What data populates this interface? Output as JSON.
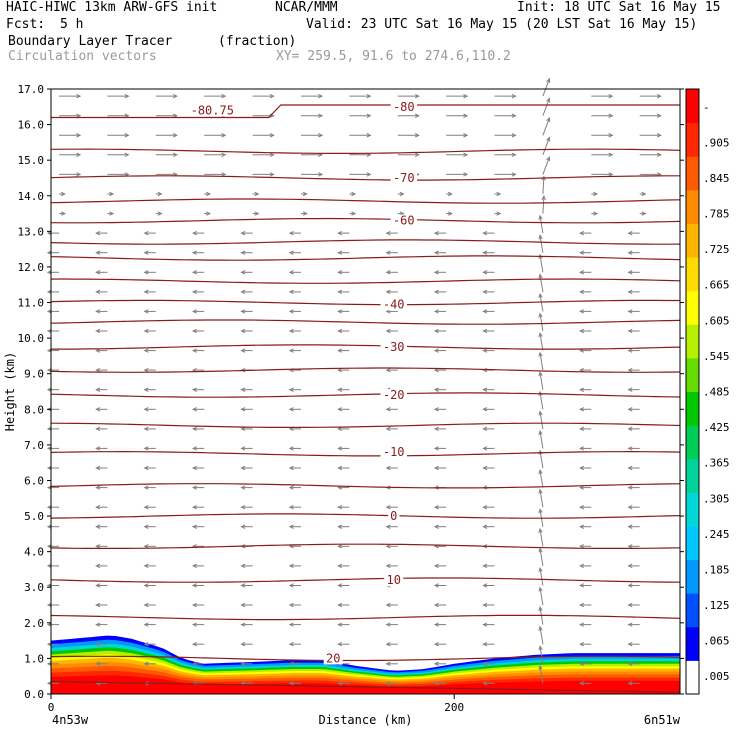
{
  "header": {
    "model": "HAIC-HIWC 13km ARW-GFS init",
    "org": "NCAR/MMM",
    "init": "Init: 18 UTC Sat 16 May 15",
    "fcst_label": "Fcst:",
    "fcst_value": "5 h",
    "valid": "Valid: 23 UTC Sat 16 May 15 (20 LST Sat 16 May 15)",
    "field_name": "Boundary Layer Tracer",
    "field_units": "(fraction)",
    "vector_label": "Circulation vectors",
    "xy_label": "XY= 259.5, 91.6 to 274.6,110.2"
  },
  "colors": {
    "contour": "#8b1a1a",
    "vector": "#7f7f7f",
    "colorbar": [
      "#ffffff",
      "#0000ff",
      "#0050ff",
      "#0099ff",
      "#00c8ff",
      "#00d7d7",
      "#00d29b",
      "#00cd55",
      "#00c800",
      "#64dc00",
      "#b4f000",
      "#ffff00",
      "#ffdc00",
      "#ffb400",
      "#ff8c00",
      "#ff5a00",
      "#ff2800",
      "#ff0000"
    ]
  },
  "chart_data": {
    "type": "heatmap",
    "title": "Boundary Layer Tracer",
    "units": "(fraction)",
    "xlabel": "Distance (km)",
    "ylabel": "Height (km)",
    "xlim": [
      0,
      312
    ],
    "ylim": [
      0,
      17
    ],
    "x_tick_labels": [
      "0",
      "200"
    ],
    "x_end_labels": [
      "4n53w",
      "6n51w"
    ],
    "y_ticks": [
      "0.0",
      "1.0",
      "2.0",
      "3.0",
      "4.0",
      "5.0",
      "6.0",
      "7.0",
      "8.0",
      "9.0",
      "10.0",
      "11.0",
      "12.0",
      "13.0",
      "14.0",
      "15.0",
      "16.0",
      "17.0"
    ],
    "colorbar_labels": [
      ".005",
      ".065",
      ".125",
      ".185",
      ".245",
      ".305",
      ".365",
      ".425",
      ".485",
      ".545",
      ".605",
      ".665",
      ".725",
      ".785",
      ".845",
      ".905",
      "-"
    ],
    "temperature_contours": [
      {
        "label": "-80.75",
        "x": 80,
        "y": 16.4
      },
      {
        "label": "-80",
        "x": 175,
        "y": 16.5
      },
      {
        "label": "-70",
        "x": 175,
        "y": 14.5
      },
      {
        "label": "-60",
        "x": 175,
        "y": 13.3
      },
      {
        "label": "-40",
        "x": 170,
        "y": 10.95
      },
      {
        "label": "-30",
        "x": 170,
        "y": 9.75
      },
      {
        "label": "-20",
        "x": 170,
        "y": 8.4
      },
      {
        "label": "-10",
        "x": 170,
        "y": 6.8
      },
      {
        "label": "0",
        "x": 170,
        "y": 5.0
      },
      {
        "label": "10",
        "x": 170,
        "y": 3.2
      },
      {
        "label": "20",
        "x": 140,
        "y": 1.0
      }
    ],
    "contour_levels_km": [
      0.35,
      1.0,
      2.15,
      3.2,
      4.15,
      5.0,
      5.85,
      6.75,
      7.55,
      8.4,
      9.1,
      9.75,
      10.45,
      11.0,
      11.6,
      12.25,
      12.7,
      13.3,
      13.85,
      14.5,
      15.25,
      16.2
    ],
    "boundary_layer_top_km": [
      [
        0,
        1.5
      ],
      [
        20,
        1.6
      ],
      [
        30,
        1.65
      ],
      [
        40,
        1.55
      ],
      [
        55,
        1.3
      ],
      [
        65,
        1.0
      ],
      [
        75,
        0.85
      ],
      [
        100,
        0.9
      ],
      [
        120,
        0.95
      ],
      [
        135,
        0.95
      ],
      [
        150,
        0.8
      ],
      [
        170,
        0.65
      ],
      [
        185,
        0.7
      ],
      [
        200,
        0.85
      ],
      [
        220,
        1.0
      ],
      [
        240,
        1.1
      ],
      [
        260,
        1.15
      ],
      [
        280,
        1.15
      ],
      [
        312,
        1.15
      ]
    ]
  }
}
